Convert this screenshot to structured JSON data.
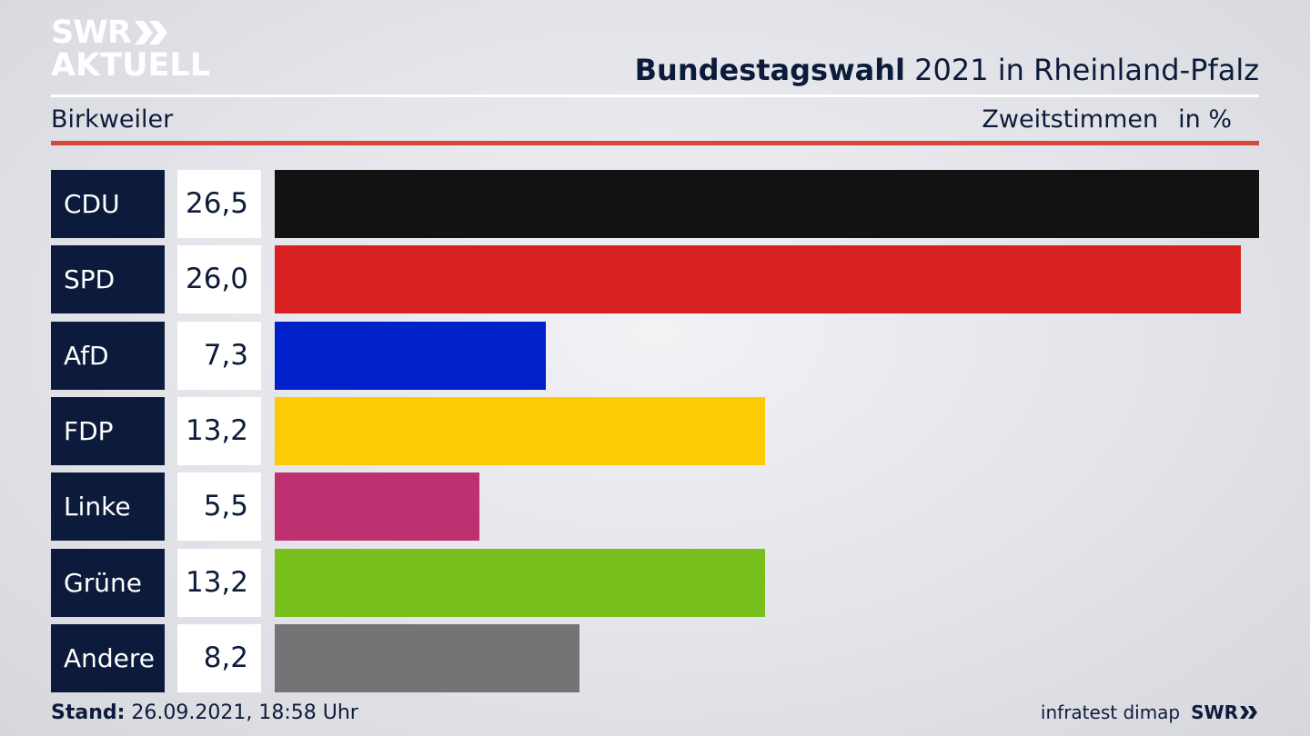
{
  "logo": {
    "line1": "SWR",
    "line2": "AKTUELL"
  },
  "header": {
    "title_bold": "Bundestagswahl",
    "title_rest": " 2021 in Rheinland-Pfalz",
    "place": "Birkweiler",
    "measure": "Zweitstimmen",
    "unit": "in %"
  },
  "chart_data": {
    "type": "bar",
    "orientation": "horizontal",
    "categories": [
      "CDU",
      "SPD",
      "AfD",
      "FDP",
      "Linke",
      "Grüne",
      "Andere"
    ],
    "values": [
      26.5,
      26.0,
      7.3,
      13.2,
      5.5,
      13.2,
      8.2
    ],
    "value_labels": [
      "26,5",
      "26,0",
      "7,3",
      "13,2",
      "5,5",
      "13,2",
      "8,2"
    ],
    "colors": [
      "#121212",
      "#d72121",
      "#0020c9",
      "#fdcb05",
      "#bf3070",
      "#79bf1d",
      "#747476"
    ],
    "title": "Bundestagswahl 2021 in Rheinland-Pfalz",
    "xlim": [
      0,
      26.5
    ]
  },
  "footer": {
    "stand_label": "Stand:",
    "stand_value": " 26.09.2021, 18:58 Uhr",
    "source": "infratest dimap",
    "brand": "SWR"
  }
}
